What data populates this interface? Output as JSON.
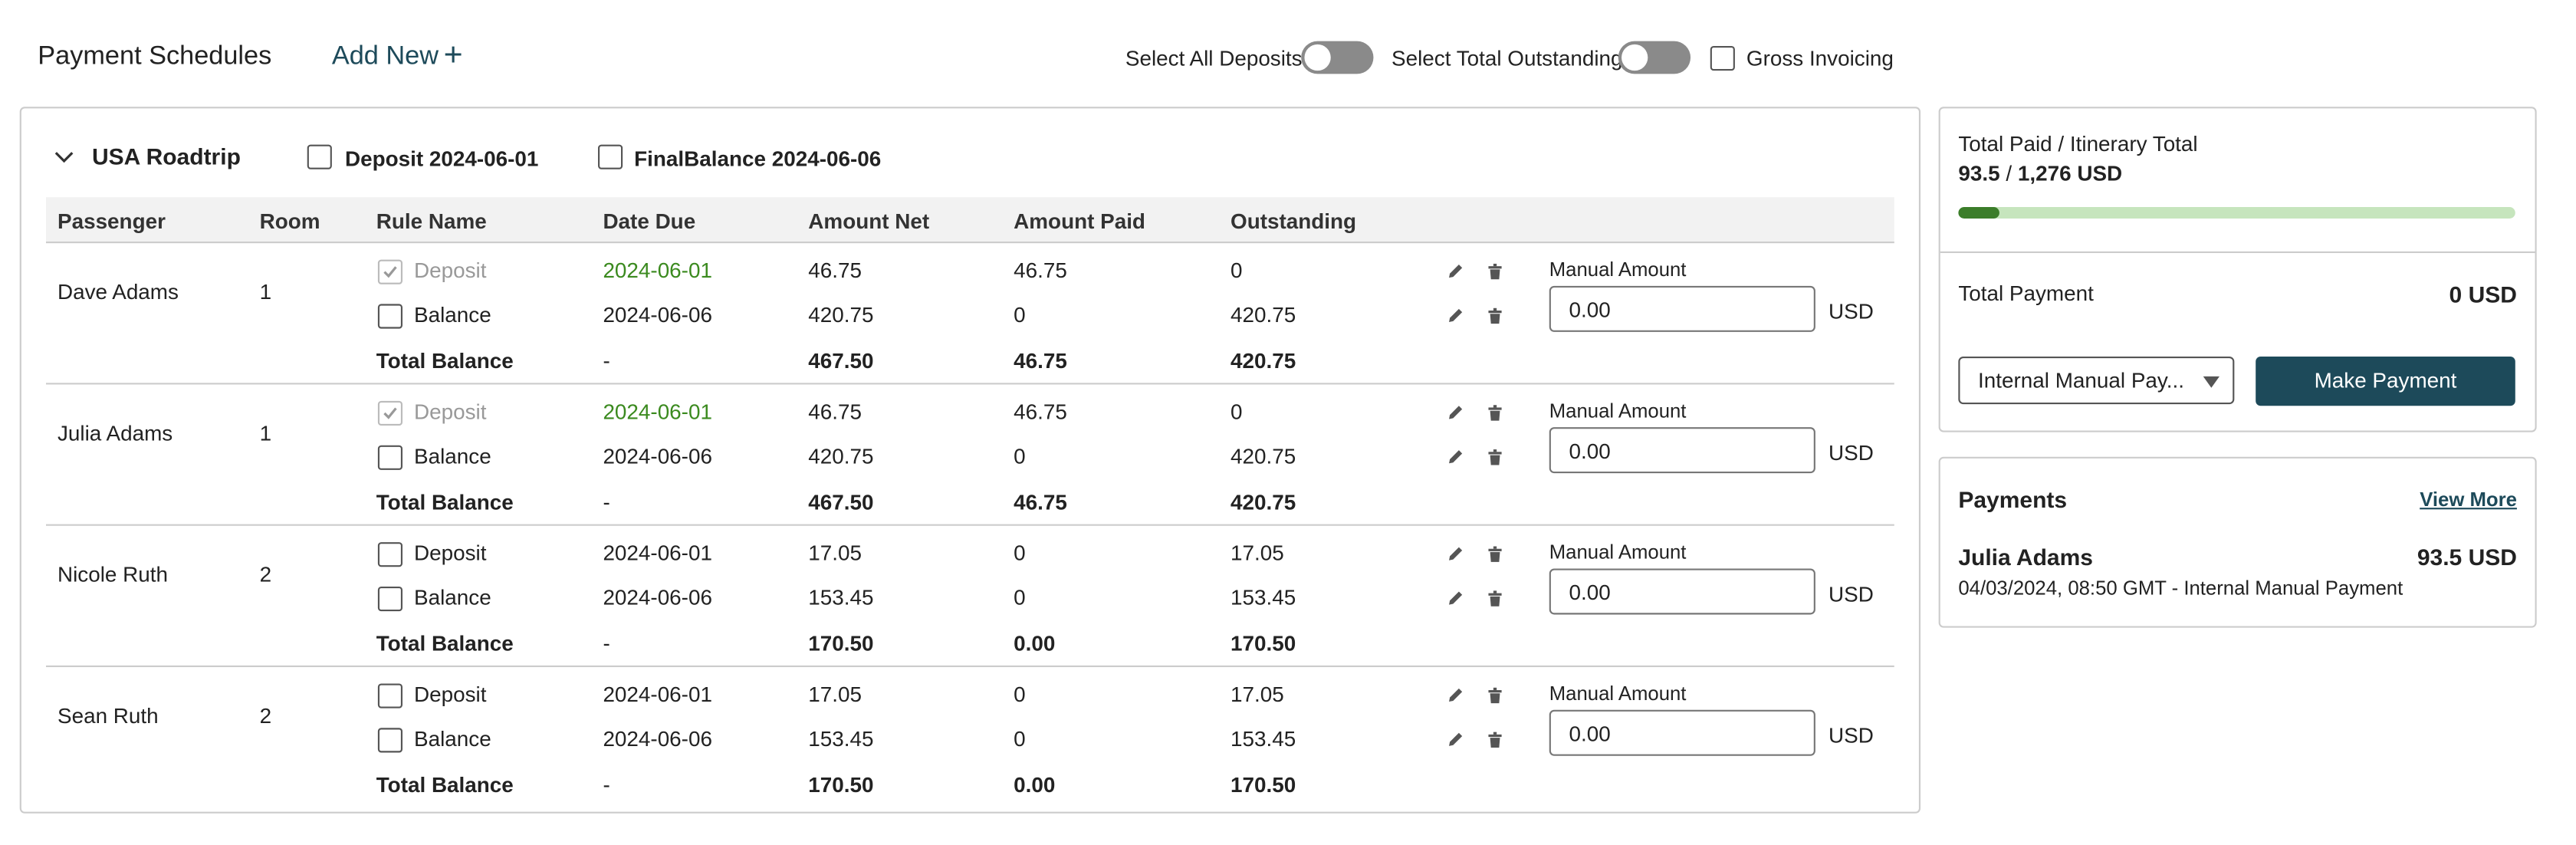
{
  "header": {
    "title": "Payment Schedules",
    "add_new": "Add New",
    "add_icon": "+",
    "toggles": [
      "Select All Deposits",
      "Select Total Outstanding"
    ],
    "gross_invoicing": "Gross Invoicing"
  },
  "trip": {
    "name": "USA Roadtrip",
    "filters": [
      "Deposit 2024-06-01",
      "FinalBalance 2024-06-06"
    ]
  },
  "columns": [
    "Passenger",
    "Room",
    "Rule Name",
    "Date Due",
    "Amount Net",
    "Amount Paid",
    "Outstanding"
  ],
  "passengers": [
    {
      "name": "Dave Adams",
      "room": "1",
      "rules": [
        {
          "rule": "Deposit",
          "date": "2024-06-01",
          "net": "46.75",
          "paid_amount": "46.75",
          "outstanding": "0",
          "paid": true
        },
        {
          "rule": "Balance",
          "date": "2024-06-06",
          "net": "420.75",
          "paid_amount": "0",
          "outstanding": "420.75",
          "paid": false
        }
      ],
      "total": {
        "label": "Total Balance",
        "date": "-",
        "net": "467.50",
        "paid_amount": "46.75",
        "outstanding": "420.75"
      },
      "manual_label": "Manual Amount",
      "manual_value": "0.00",
      "currency": "USD"
    },
    {
      "name": "Julia Adams",
      "room": "1",
      "rules": [
        {
          "rule": "Deposit",
          "date": "2024-06-01",
          "net": "46.75",
          "paid_amount": "46.75",
          "outstanding": "0",
          "paid": true
        },
        {
          "rule": "Balance",
          "date": "2024-06-06",
          "net": "420.75",
          "paid_amount": "0",
          "outstanding": "420.75",
          "paid": false
        }
      ],
      "total": {
        "label": "Total Balance",
        "date": "-",
        "net": "467.50",
        "paid_amount": "46.75",
        "outstanding": "420.75"
      },
      "manual_label": "Manual Amount",
      "manual_value": "0.00",
      "currency": "USD"
    },
    {
      "name": "Nicole Ruth",
      "room": "2",
      "rules": [
        {
          "rule": "Deposit",
          "date": "2024-06-01",
          "net": "17.05",
          "paid_amount": "0",
          "outstanding": "17.05",
          "paid": false
        },
        {
          "rule": "Balance",
          "date": "2024-06-06",
          "net": "153.45",
          "paid_amount": "0",
          "outstanding": "153.45",
          "paid": false
        }
      ],
      "total": {
        "label": "Total Balance",
        "date": "-",
        "net": "170.50",
        "paid_amount": "0.00",
        "outstanding": "170.50"
      },
      "manual_label": "Manual Amount",
      "manual_value": "0.00",
      "currency": "USD"
    },
    {
      "name": "Sean Ruth",
      "room": "2",
      "rules": [
        {
          "rule": "Deposit",
          "date": "2024-06-01",
          "net": "17.05",
          "paid_amount": "0",
          "outstanding": "17.05",
          "paid": false
        },
        {
          "rule": "Balance",
          "date": "2024-06-06",
          "net": "153.45",
          "paid_amount": "0",
          "outstanding": "153.45",
          "paid": false
        }
      ],
      "total": {
        "label": "Total Balance",
        "date": "-",
        "net": "170.50",
        "paid_amount": "0.00",
        "outstanding": "170.50"
      },
      "manual_label": "Manual Amount",
      "manual_value": "0.00",
      "currency": "USD"
    }
  ],
  "summary": {
    "label": "Total Paid / Itinerary Total",
    "paid": 93.5,
    "separator": "/",
    "total": {
      "value": 1276,
      "label": "1,276 USD"
    },
    "total_payment_label": "Total Payment",
    "total_payment": "0 USD",
    "method": "Internal Manual Pay...",
    "button": "Make Payment"
  },
  "payments": {
    "title": "Payments",
    "view_more": "View More",
    "entries": [
      {
        "name": "Julia Adams",
        "amount": "93.5 USD",
        "detail": "04/03/2024, 08:50 GMT - Internal Manual Payment"
      }
    ]
  }
}
